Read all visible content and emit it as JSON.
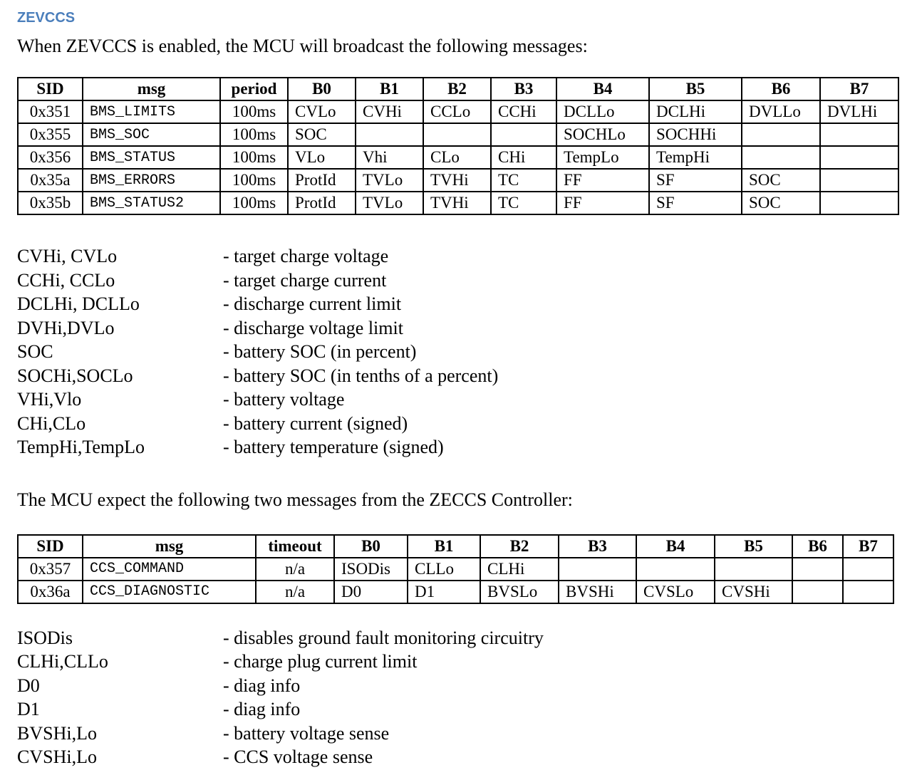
{
  "heading": "ZEVCCS",
  "intro": "When ZEVCCS is enabled, the MCU will broadcast the following messages:",
  "broadcast_table": {
    "headers": [
      "SID",
      "msg",
      "period",
      "B0",
      "B1",
      "B2",
      "B3",
      "B4",
      "B5",
      "B6",
      "B7"
    ],
    "rows": [
      [
        "0x351",
        "BMS_LIMITS",
        "100ms",
        "CVLo",
        "CVHi",
        "CCLo",
        "CCHi",
        "DCLLo",
        "DCLHi",
        "DVLLo",
        "DVLHi"
      ],
      [
        "0x355",
        "BMS_SOC",
        "100ms",
        "SOC",
        "",
        "",
        "",
        "SOCHLo",
        "SOCHHi",
        "",
        ""
      ],
      [
        "0x356",
        "BMS_STATUS",
        "100ms",
        "VLo",
        "Vhi",
        "CLo",
        "CHi",
        "TempLo",
        "TempHi",
        "",
        ""
      ],
      [
        "0x35a",
        "BMS_ERRORS",
        "100ms",
        "ProtId",
        "TVLo",
        "TVHi",
        "TC",
        "FF",
        "SF",
        "SOC",
        ""
      ],
      [
        "0x35b",
        "BMS_STATUS2",
        "100ms",
        "ProtId",
        "TVLo",
        "TVHi",
        "TC",
        "FF",
        "SF",
        "SOC",
        ""
      ]
    ]
  },
  "definitions_1": [
    {
      "term": "CVHi, CVLo",
      "desc": "- target charge voltage"
    },
    {
      "term": "CCHi, CCLo",
      "desc": "- target charge current"
    },
    {
      "term": "DCLHi, DCLLo",
      "desc": "- discharge current limit"
    },
    {
      "term": "DVHi,DVLo",
      "desc": "- discharge voltage limit"
    },
    {
      "term": "SOC",
      "desc": "- battery SOC (in percent)"
    },
    {
      "term": "SOCHi,SOCLo",
      "desc": "- battery SOC (in tenths of a percent)"
    },
    {
      "term": "VHi,Vlo",
      "desc": "- battery voltage"
    },
    {
      "term": "CHi,CLo",
      "desc": "- battery current (signed)"
    },
    {
      "term": "TempHi,TempLo",
      "desc": "- battery temperature (signed)"
    }
  ],
  "second_intro": "The MCU expect the following two messages from the ZECCS Controller:",
  "command_table": {
    "headers": [
      "SID",
      "msg",
      "timeout",
      "B0",
      "B1",
      "B2",
      "B3",
      "B4",
      "B5",
      "B6",
      "B7"
    ],
    "rows": [
      [
        "0x357",
        "CCS_COMMAND",
        "n/a",
        "ISODis",
        "CLLo",
        "CLHi",
        "",
        "",
        "",
        "",
        ""
      ],
      [
        "0x36a",
        "CCS_DIAGNOSTIC",
        "n/a",
        "D0",
        "D1",
        "BVSLo",
        "BVSHi",
        "CVSLo",
        "CVSHi",
        "",
        ""
      ]
    ]
  },
  "definitions_2": [
    {
      "term": "ISODis",
      "desc": "- disables ground fault monitoring circuitry"
    },
    {
      "term": "CLHi,CLLo",
      "desc": "- charge plug current limit"
    },
    {
      "term": "D0",
      "desc": "- diag info"
    },
    {
      "term": "D1",
      "desc": "- diag info"
    },
    {
      "term": "BVSHi,Lo",
      "desc": "- battery voltage sense"
    },
    {
      "term": "CVSHi,Lo",
      "desc": "- CCS voltage sense"
    }
  ],
  "colors": {
    "heading_blue": "#4a7ebb",
    "text": "#000000",
    "table_border": "#000000",
    "background": "#ffffff"
  }
}
